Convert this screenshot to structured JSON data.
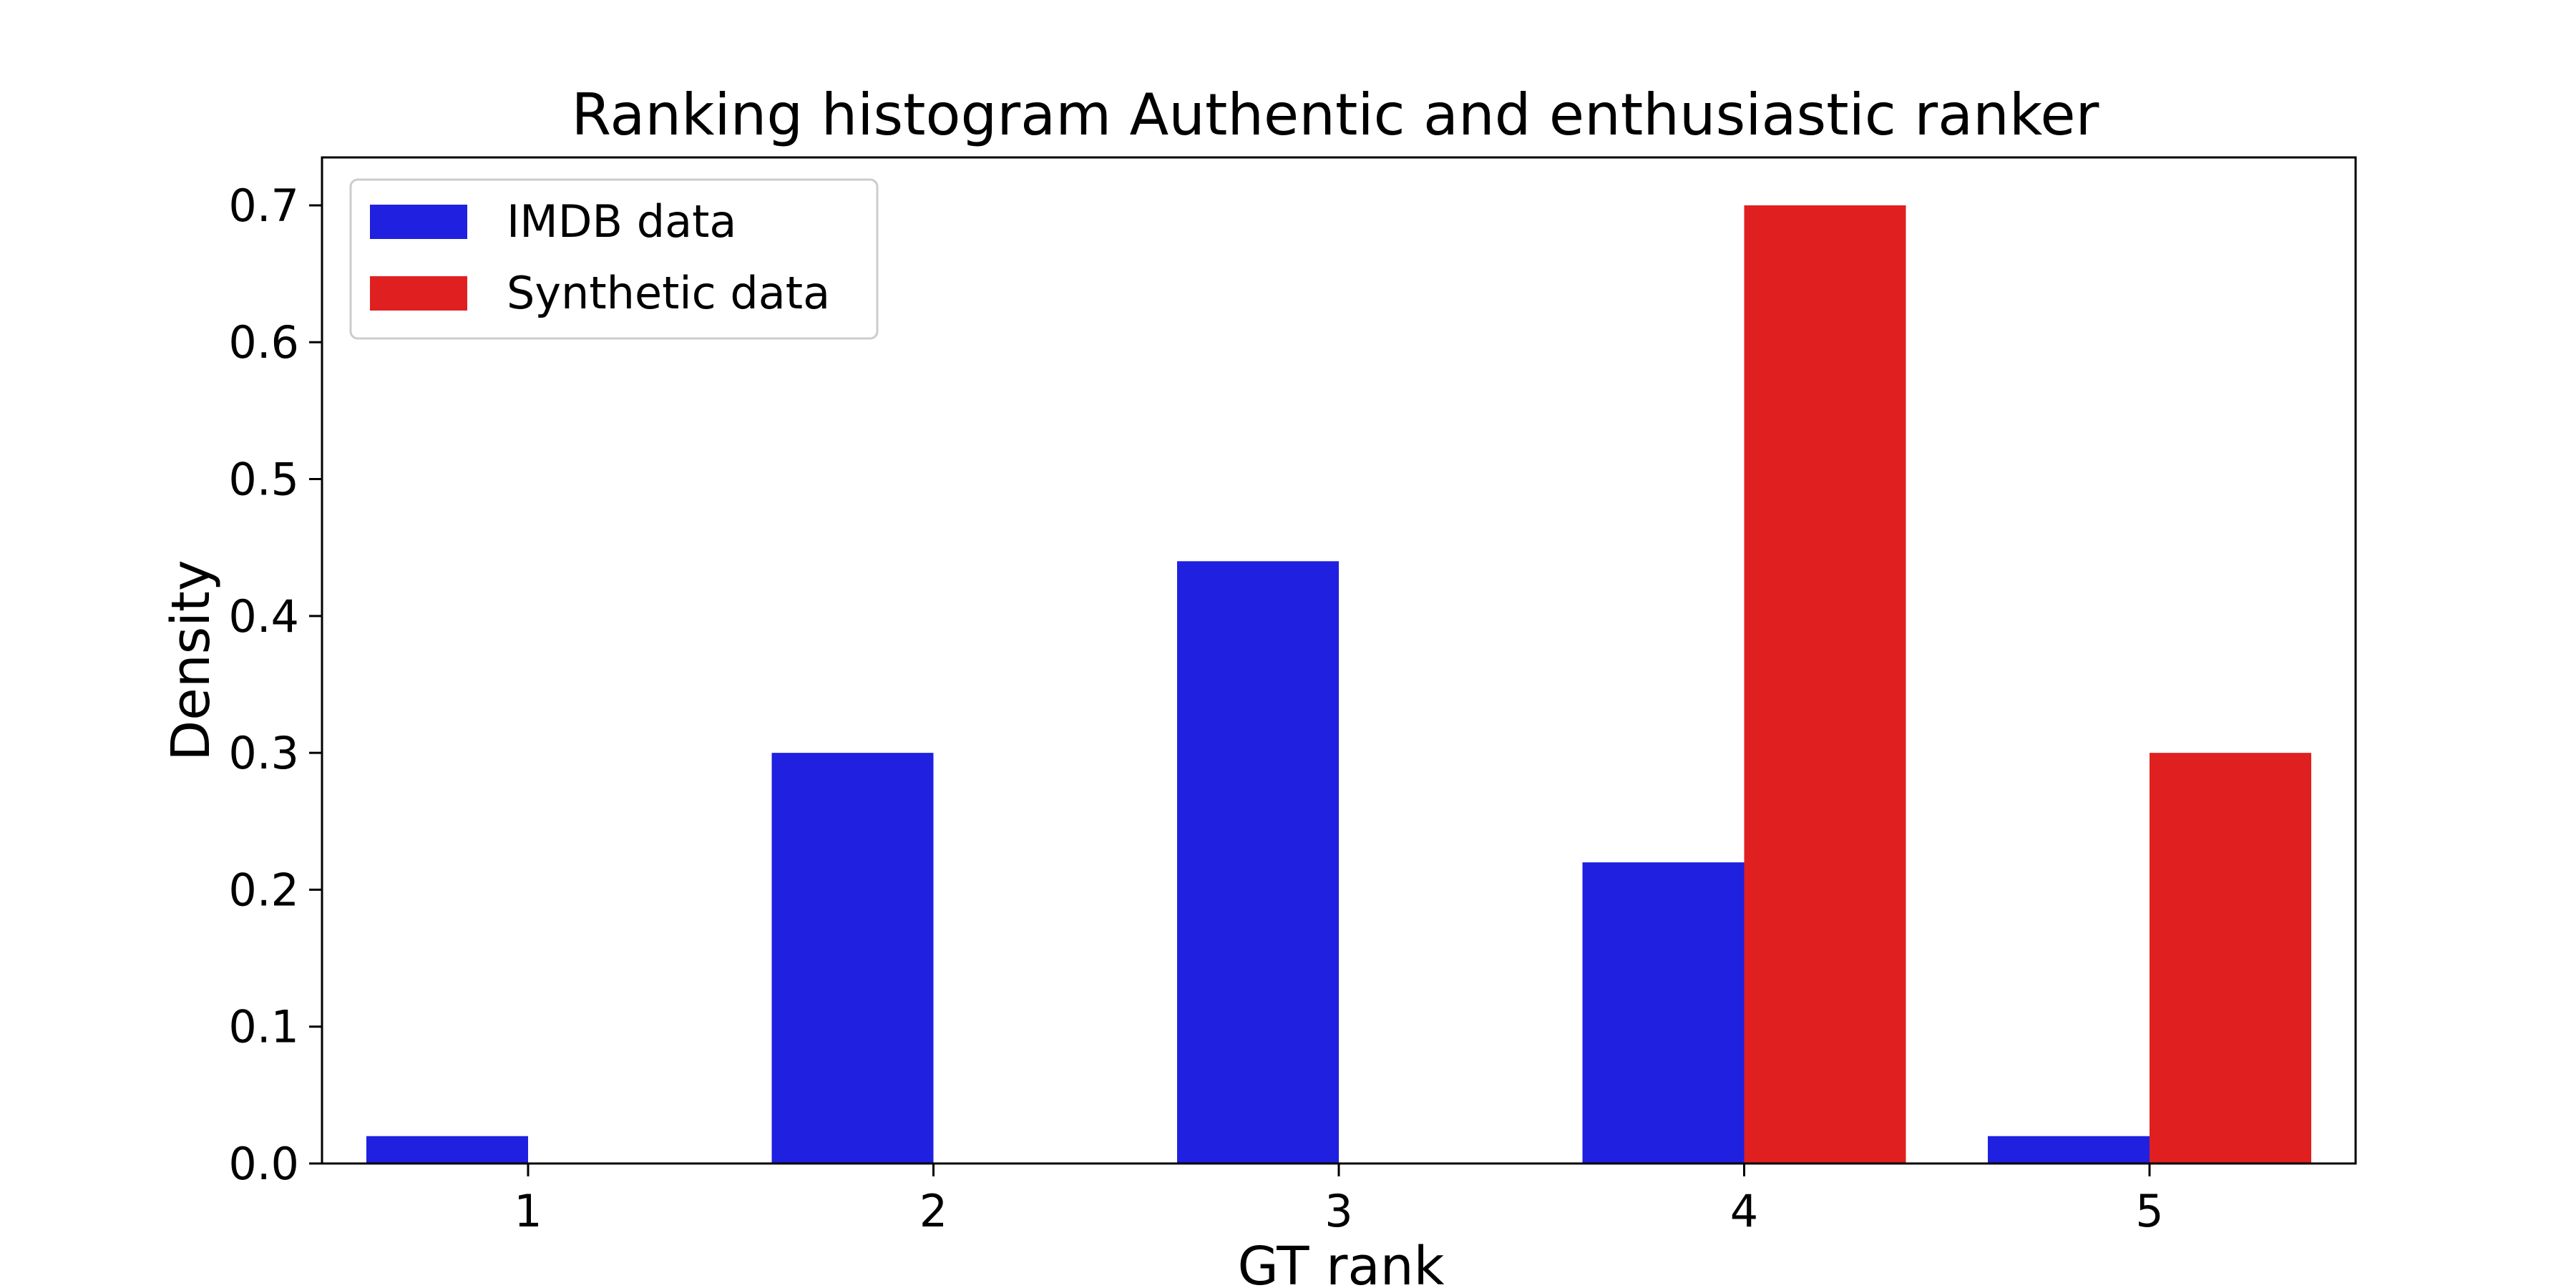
{
  "chart_data": {
    "type": "bar",
    "title": "Ranking histogram Authentic and enthusiastic ranker",
    "xlabel": "GT rank",
    "ylabel": "Density",
    "categories": [
      "1",
      "2",
      "3",
      "4",
      "5"
    ],
    "series": [
      {
        "name": "IMDB data",
        "color": "#2020e0",
        "values": [
          0.02,
          0.3,
          0.44,
          0.22,
          0.02
        ]
      },
      {
        "name": "Synthetic data",
        "color": "#e02020",
        "values": [
          0.0,
          0.0,
          0.0,
          0.7,
          0.3
        ]
      }
    ],
    "ylim": [
      0,
      0.735
    ],
    "yticks": [
      "0.0",
      "0.1",
      "0.2",
      "0.3",
      "0.4",
      "0.5",
      "0.6",
      "0.7"
    ],
    "grid": false,
    "legend_position": "top-left"
  }
}
